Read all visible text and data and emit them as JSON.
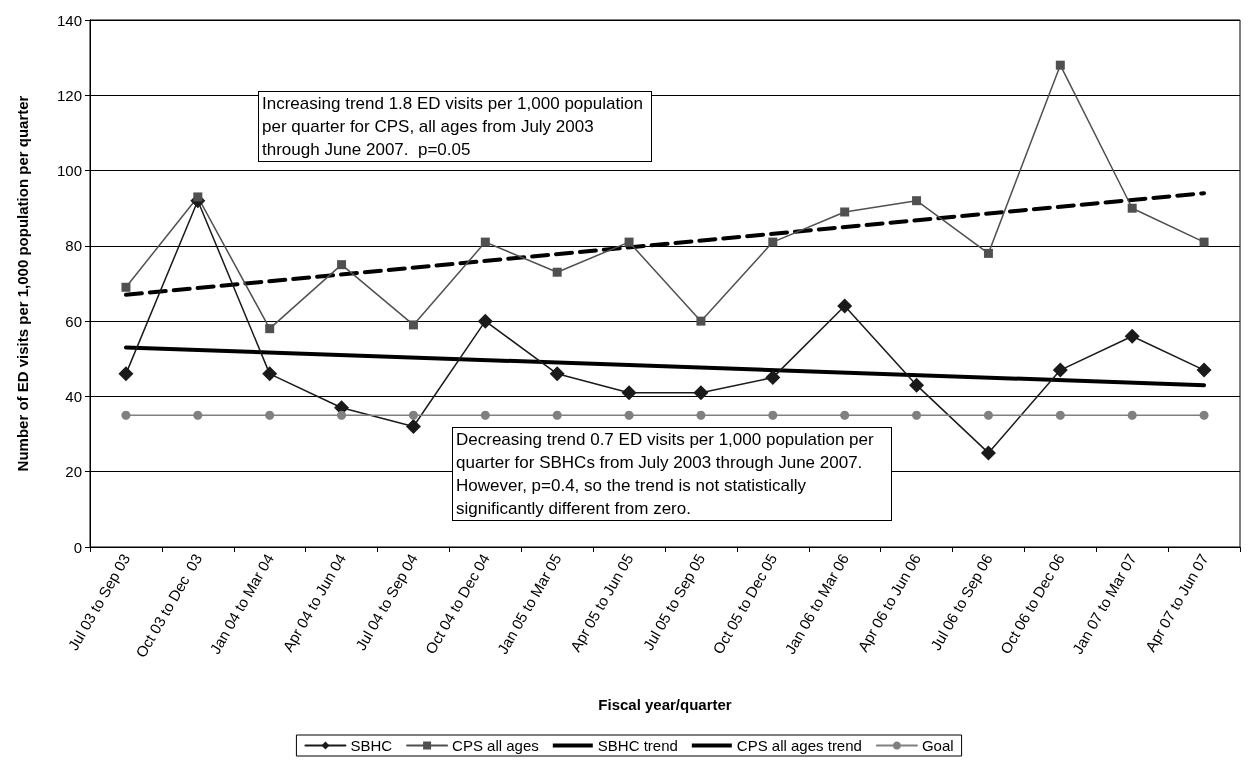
{
  "chart_data": {
    "type": "line",
    "xlabel": "Fiscal year/quarter",
    "ylabel": "Number of ED visits per 1,000 population per quarter",
    "categories": [
      "Jul 03 to Sep 03",
      "Oct 03 to Dec  03",
      "Jan 04 to Mar 04",
      "Apr 04 to Jun 04",
      "Jul 04 to Sep 04",
      "Oct 04 to Dec 04",
      "Jan 05 to Mar 05",
      "Apr 05 to Jun 05",
      "Jul 05 to Sep 05",
      "Oct 05 to Dec 05",
      "Jan 06 to Mar 06",
      "Apr 06 to Jun 06",
      "Jul 06 to Sep 06",
      "Oct 06 to Dec 06",
      "Jan 07 to Mar 07",
      "Apr 07 to Jun 07"
    ],
    "series": [
      {
        "name": "SBHC",
        "color": "#1a1a1a",
        "marker": "diamond",
        "values": [
          46,
          92,
          46,
          37,
          32,
          60,
          46,
          41,
          41,
          45,
          64,
          43,
          25,
          47,
          56,
          47
        ]
      },
      {
        "name": "CPS all ages",
        "color": "#505050",
        "marker": "square",
        "values": [
          69,
          93,
          58,
          75,
          59,
          81,
          73,
          81,
          60,
          81,
          89,
          92,
          78,
          128,
          90,
          81
        ]
      },
      {
        "name": "SBHC trend",
        "color": "#000000",
        "marker": "none",
        "line_style": "solid",
        "x": [
          "Jul 03 to Sep 03",
          "Apr 07 to Jun 07"
        ],
        "values": [
          53,
          43
        ]
      },
      {
        "name": "CPS all ages trend",
        "color": "#000000",
        "marker": "none",
        "line_style": "dashed",
        "x": [
          "Jul 03 to Sep 03",
          "Apr 07 to Jun 07"
        ],
        "values": [
          67,
          94
        ]
      },
      {
        "name": "Goal",
        "color": "#808080",
        "marker": "circle",
        "values": [
          35,
          35,
          35,
          35,
          35,
          35,
          35,
          35,
          35,
          35,
          35,
          35,
          35,
          35,
          35,
          35
        ]
      }
    ],
    "ylim": [
      0,
      140
    ],
    "yticks": [
      0,
      20,
      40,
      60,
      80,
      100,
      120,
      140
    ],
    "grid": "y",
    "legend": "bottom",
    "annotations": [
      "Increasing trend 1.8 ED visits per 1,000 population per quarter for CPS, all ages from July 2003 through June 2007.  p=0.05",
      "Decreasing trend 0.7 ED visits per 1,000 population per quarter for SBHCs from July 2003 through June 2007. However, p=0.4, so the trend is not statistically significantly different from zero."
    ]
  }
}
